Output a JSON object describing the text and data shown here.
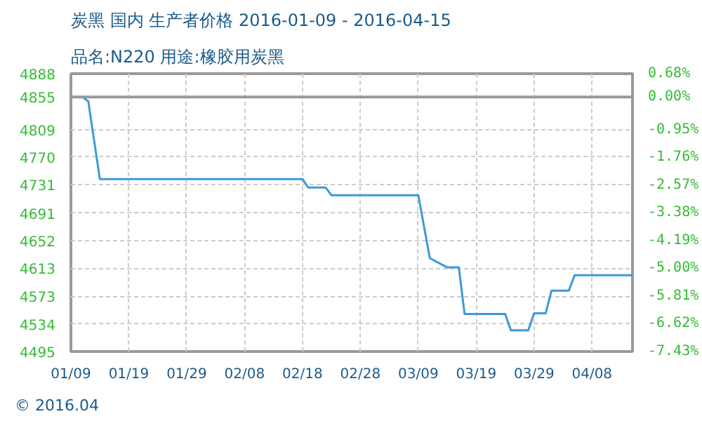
{
  "chart_data": {
    "type": "line",
    "title": "炭黑 国内 生产者价格 2016-01-09 - 2016-04-15",
    "subtitle": "品名:N220 用途:橡胶用炭黑",
    "x": [
      "2016-01-09",
      "2016-01-11",
      "2016-01-12",
      "2016-01-14",
      "2016-02-18",
      "2016-02-19",
      "2016-02-22",
      "2016-02-23",
      "2016-03-09",
      "2016-03-11",
      "2016-03-14",
      "2016-03-16",
      "2016-03-17",
      "2016-03-24",
      "2016-03-25",
      "2016-03-28",
      "2016-03-29",
      "2016-03-31",
      "2016-04-01",
      "2016-04-04",
      "2016-04-05",
      "2016-04-15"
    ],
    "series": [
      {
        "color": "#3c9ad8",
        "values": [
          4855,
          4855,
          4849,
          4739,
          4739,
          4727,
          4727,
          4716,
          4716,
          4627,
          4614,
          4614,
          4548,
          4548,
          4525,
          4525,
          4549,
          4549,
          4581,
          4581,
          4603,
          4603
        ]
      }
    ],
    "xlim": [
      "2016-01-09",
      "2016-04-15"
    ],
    "xticks": [
      {
        "value": "2016-01-09",
        "label": "01/09"
      },
      {
        "value": "2016-01-19",
        "label": "01/19"
      },
      {
        "value": "2016-01-29",
        "label": "01/29"
      },
      {
        "value": "2016-02-08",
        "label": "02/08"
      },
      {
        "value": "2016-02-18",
        "label": "02/18"
      },
      {
        "value": "2016-02-28",
        "label": "02/28"
      },
      {
        "value": "2016-03-09",
        "label": "03/09"
      },
      {
        "value": "2016-03-19",
        "label": "03/19"
      },
      {
        "value": "2016-03-29",
        "label": "03/29"
      },
      {
        "value": "2016-04-08",
        "label": "04/08"
      }
    ],
    "ylim": [
      4495,
      4888
    ],
    "yticks": [
      4888,
      4809,
      4770,
      4731,
      4691,
      4652,
      4613,
      4573,
      4534,
      4495
    ],
    "y2lim": [
      -7.43,
      0.68
    ],
    "y2ticks": [
      {
        "value": 0.68,
        "label": "0.68%"
      },
      {
        "value": 0,
        "label": "0.00%"
      },
      {
        "value": -0.95,
        "label": "-0.95%"
      },
      {
        "value": -1.76,
        "label": "-1.76%"
      },
      {
        "value": -2.57,
        "label": "-2.57%"
      },
      {
        "value": -3.38,
        "label": "-3.38%"
      },
      {
        "value": -4.19,
        "label": "-4.19%"
      },
      {
        "value": -5.0,
        "label": "-5.00%"
      },
      {
        "value": -5.81,
        "label": "-5.81%"
      },
      {
        "value": -6.62,
        "label": "-6.62%"
      },
      {
        "value": -7.43,
        "label": "-7.43%"
      }
    ],
    "ref_lines": [
      {
        "axis": "y",
        "value": 4855,
        "label": "4855",
        "color": "#999999"
      }
    ],
    "annotations": [
      "© 2016.04"
    ],
    "grid": true,
    "marker": "none",
    "line_style": "solid"
  }
}
